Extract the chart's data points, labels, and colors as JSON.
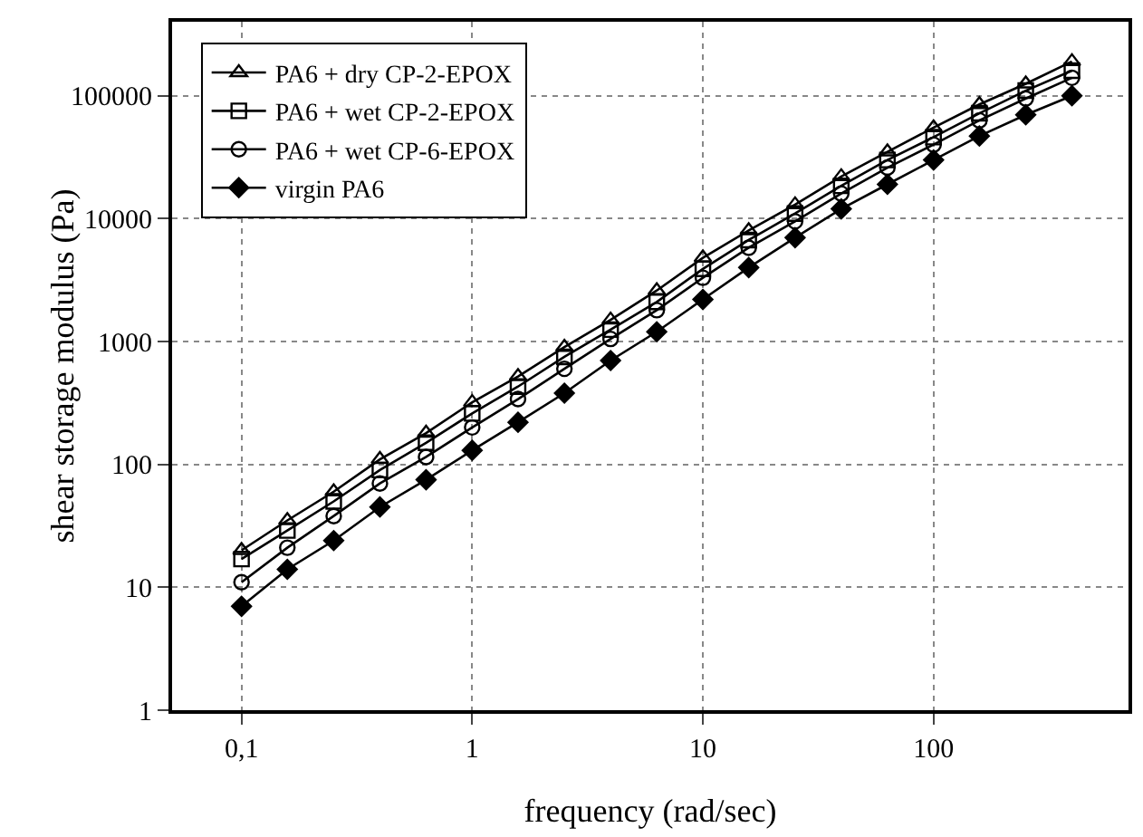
{
  "chart_data": {
    "type": "line",
    "xlabel": "frequency (rad/sec)",
    "ylabel": "shear storage modulus (Pa)",
    "log": "xy",
    "grid": true,
    "legend": "top left",
    "line_style": "solid",
    "x": [
      0.1,
      0.158,
      0.251,
      0.398,
      0.631,
      1,
      1.58,
      2.51,
      3.98,
      6.31,
      10,
      15.8,
      25.1,
      39.8,
      63.1,
      100,
      158,
      251,
      398
    ],
    "xlim": [
      0.05,
      700
    ],
    "xticks": [
      {
        "value": 0.1,
        "label": "0,1"
      },
      1,
      10,
      100
    ],
    "ylim": [
      1,
      400000
    ],
    "yticks": [
      1,
      10,
      100,
      1000,
      10000,
      100000
    ],
    "series": [
      {
        "name": "PA6 + dry CP-2-EPOX",
        "color": "#000000",
        "marker": "triangle",
        "values": [
          20,
          35,
          60,
          110,
          180,
          320,
          520,
          900,
          1500,
          2600,
          4800,
          8000,
          13000,
          22000,
          35000,
          55000,
          85000,
          125000,
          190000
        ]
      },
      {
        "name": "PA6 + wet CP-2-EPOX",
        "color": "#000000",
        "marker": "square",
        "values": [
          17,
          29,
          50,
          90,
          150,
          260,
          430,
          750,
          1250,
          2100,
          3900,
          6700,
          11000,
          18500,
          30000,
          46000,
          72000,
          110000,
          160000
        ]
      },
      {
        "name": "PA6 + wet CP-6-EPOX",
        "color": "#000000",
        "marker": "circle",
        "values": [
          11,
          21,
          38,
          70,
          115,
          200,
          340,
          600,
          1050,
          1800,
          3300,
          5800,
          9500,
          16000,
          26000,
          40000,
          63000,
          95000,
          140000
        ]
      },
      {
        "name": "virgin PA6",
        "color": "#000000",
        "marker": "diamond",
        "values": [
          7,
          14,
          24,
          45,
          75,
          130,
          220,
          380,
          700,
          1200,
          2200,
          4000,
          7000,
          12000,
          19000,
          30000,
          47000,
          70000,
          100000
        ]
      }
    ]
  }
}
